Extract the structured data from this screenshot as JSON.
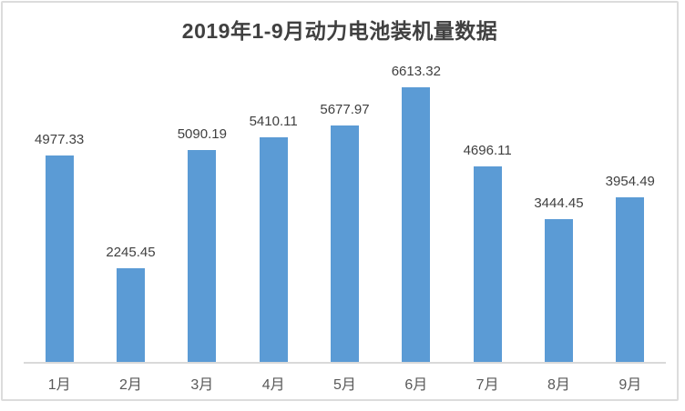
{
  "frame": {
    "background": "#ffffff",
    "border_color": "#dcdcdc"
  },
  "chart_data": {
    "type": "bar",
    "title": "2019年1-9月动力电池装机量数据",
    "categories": [
      "1月",
      "2月",
      "3月",
      "4月",
      "5月",
      "6月",
      "7月",
      "8月",
      "9月"
    ],
    "values": [
      4977.33,
      2245.45,
      5090.19,
      5410.11,
      5677.97,
      6613.32,
      4696.11,
      3444.45,
      3954.49
    ],
    "data_labels_shown": true,
    "value_decimals": 2,
    "ylim": [
      0,
      7000
    ],
    "grid": false,
    "legend": false,
    "y_axis_shown": false,
    "bar_color": "#5B9BD5",
    "axis_line_color": "#d9d9d9",
    "title_color": "#404040",
    "value_label_color": "#404040",
    "category_label_color": "#595959"
  }
}
